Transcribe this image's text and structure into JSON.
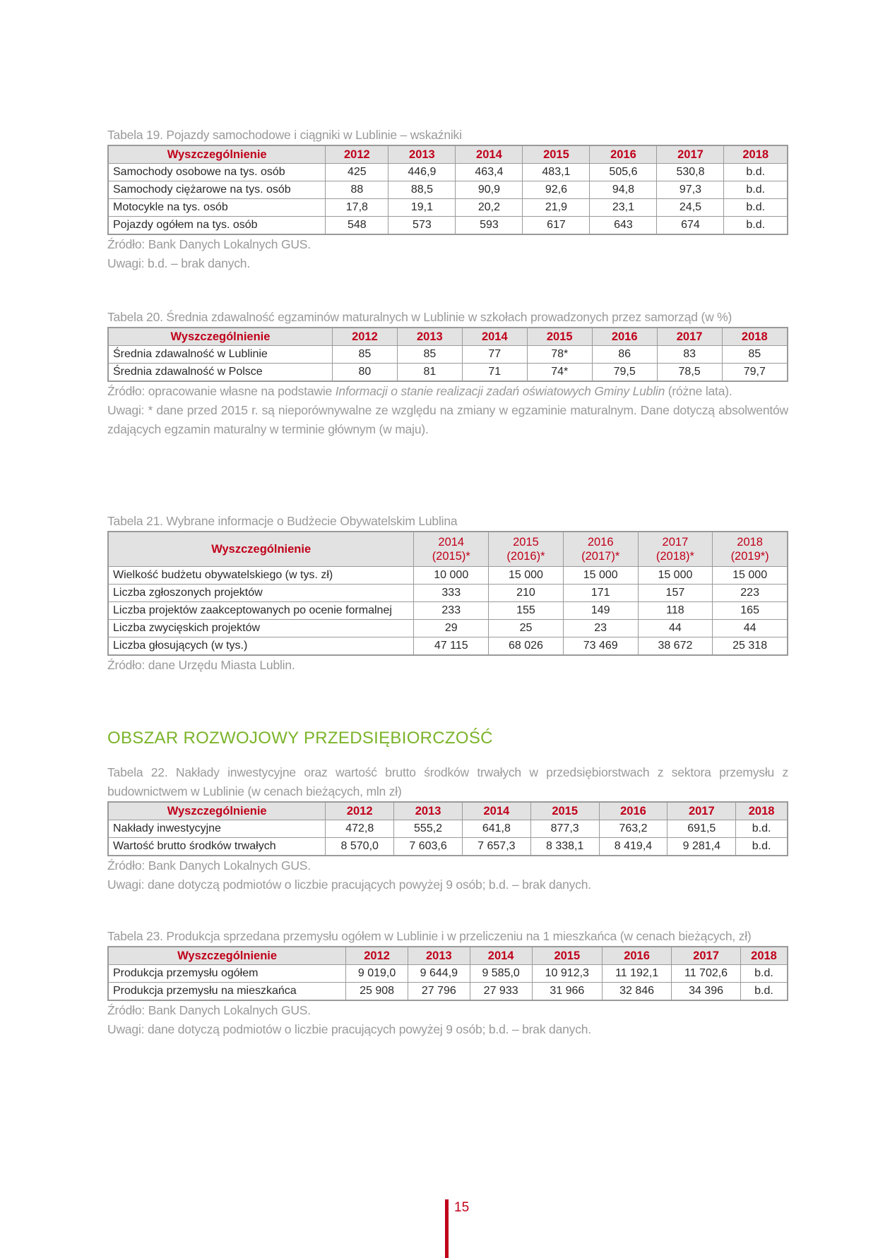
{
  "tables": [
    {
      "id": "t19",
      "caption": "Tabela 19. Pojazdy samochodowe i ciągniki w Lublinie – wskaźniki",
      "headers": [
        "Wyszczególnienie",
        "2012",
        "2013",
        "2014",
        "2015",
        "2016",
        "2017",
        "2018"
      ],
      "rows": [
        [
          "Samochody osobowe na tys. osób",
          "425",
          "446,9",
          "463,4",
          "483,1",
          "505,6",
          "530,8",
          "b.d."
        ],
        [
          "Samochody ciężarowe na tys. osób",
          "88",
          "88,5",
          "90,9",
          "92,6",
          "94,8",
          "97,3",
          "b.d."
        ],
        [
          "Motocykle na tys. osób",
          "17,8",
          "19,1",
          "20,2",
          "21,9",
          "23,1",
          "24,5",
          "b.d."
        ],
        [
          "Pojazdy ogółem na tys. osób",
          "548",
          "573",
          "593",
          "617",
          "643",
          "674",
          "b.d."
        ]
      ],
      "notes": [
        "Źródło: Bank Danych Lokalnych GUS.",
        "Uwagi: b.d. – brak danych."
      ]
    },
    {
      "id": "t20",
      "caption": "Tabela 20. Średnia zdawalność egzaminów maturalnych w Lublinie w szkołach prowadzonych przez samorząd (w %)",
      "headers": [
        "Wyszczególnienie",
        "2012",
        "2013",
        "2014",
        "2015",
        "2016",
        "2017",
        "2018"
      ],
      "rows": [
        [
          "Średnia zdawalność w Lublinie",
          "85",
          "85",
          "77",
          "78*",
          "86",
          "83",
          "85"
        ],
        [
          "Średnia zdawalność w Polsce",
          "80",
          "81",
          "71",
          "74*",
          "79,5",
          "78,5",
          "79,7"
        ]
      ],
      "source_prefix": "Źródło: opracowanie własne na podstawie ",
      "source_italic": "Informacji o stanie realizacji zadań oświatowych Gminy Lublin",
      "source_suffix": " (różne lata).",
      "notes": [
        "Uwagi: * dane przed 2015 r. są nieporównywalne ze względu na zmiany w egzaminie maturalnym. Dane dotyczą absolwentów zdających egzamin maturalny w terminie głównym (w maju)."
      ]
    },
    {
      "id": "t21",
      "caption": "Tabela 21. Wybrane informacje o Budżecie Obywatelskim Lublina",
      "headers": [
        "Wyszczególnienie",
        "2014 (2015)*",
        "2015 (2016)*",
        "2016 (2017)*",
        "2017 (2018)*",
        "2018 (2019*)"
      ],
      "rows": [
        [
          "Wielkość budżetu obywatelskiego (w tys. zł)",
          "10 000",
          "15 000",
          "15 000",
          "15 000",
          "15 000"
        ],
        [
          "Liczba zgłoszonych projektów",
          "333",
          "210",
          "171",
          "157",
          "223"
        ],
        [
          "Liczba projektów zaakceptowanych po ocenie formalnej",
          "233",
          "155",
          "149",
          "118",
          "165"
        ],
        [
          "Liczba zwycięskich projektów",
          "29",
          "25",
          "23",
          "44",
          "44"
        ],
        [
          "Liczba głosujących (w tys.)",
          "47 115",
          "68 026",
          "73 469",
          "38 672",
          "25 318"
        ]
      ],
      "notes": [
        "Źródło: dane Urzędu Miasta Lublin."
      ]
    },
    {
      "id": "t22",
      "caption": "Tabela 22. Nakłady inwestycyjne oraz wartość brutto środków trwałych w przedsiębiorstwach z sektora przemysłu z budownictwem w Lublinie (w cenach bieżących, mln zł)",
      "headers": [
        "Wyszczególnienie",
        "2012",
        "2013",
        "2014",
        "2015",
        "2016",
        "2017",
        "2018"
      ],
      "rows": [
        [
          "Nakłady inwestycyjne",
          "472,8",
          "555,2",
          "641,8",
          "877,3",
          "763,2",
          "691,5",
          "b.d."
        ],
        [
          "Wartość brutto środków trwałych",
          "8 570,0",
          "7 603,6",
          "7 657,3",
          "8 338,1",
          "8 419,4",
          "9 281,4",
          "b.d."
        ]
      ],
      "notes": [
        "Źródło: Bank Danych Lokalnych GUS.",
        "Uwagi: dane dotyczą podmiotów o liczbie pracujących powyżej 9 osób; b.d. – brak danych."
      ]
    },
    {
      "id": "t23",
      "caption": "Tabela 23. Produkcja sprzedana przemysłu ogółem w Lublinie i w przeliczeniu na 1 mieszkańca (w cenach bieżących, zł)",
      "headers": [
        "Wyszczególnienie",
        "2012",
        "2013",
        "2014",
        "2015",
        "2016",
        "2017",
        "2018"
      ],
      "rows": [
        [
          "Produkcja przemysłu ogółem",
          "9 019,0",
          "9 644,9",
          "9 585,0",
          "10 912,3",
          "11 192,1",
          "11 702,6",
          "b.d."
        ],
        [
          "Produkcja przemysłu na mieszkańca",
          "25 908",
          "27 796",
          "27 933",
          "31 966",
          "32 846",
          "34 396",
          "b.d."
        ]
      ],
      "notes": [
        "Źródło: Bank Danych Lokalnych GUS.",
        "Uwagi: dane dotyczą podmiotów o liczbie pracujących powyżej 9 osób; b.d. – brak danych."
      ]
    }
  ],
  "section_heading": "OBSZAR ROZWOJOWY PRZEDSIĘBIORCZOŚĆ",
  "page_number": "15",
  "colors": {
    "accent_red": "#c0001a",
    "heading_green": "#7bb42a"
  }
}
